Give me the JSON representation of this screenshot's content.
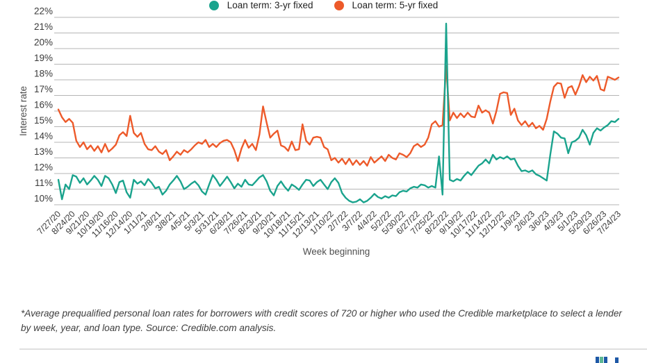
{
  "chart_data": {
    "type": "line",
    "title": "",
    "xlabel": "Week beginning",
    "ylabel": "Interest rate",
    "ylim": [
      10,
      22
    ],
    "grid": true,
    "legend_position": "bottom",
    "yticks": [
      22,
      21,
      20,
      19,
      18,
      17,
      16,
      15,
      14,
      13,
      12,
      11,
      10
    ],
    "ytick_suffix": "%",
    "x_tick_every_n_points": 4,
    "x_tick_labels": [
      "7/27/20",
      "8/24/20",
      "9/21/20",
      "10/19/20",
      "11/16/20",
      "12/14/20",
      "1/11/21",
      "2/8/21",
      "3/8/21",
      "4/5/21",
      "5/3/21",
      "5/31/21",
      "6/28/21",
      "7/26/21",
      "8/23/21",
      "9/20/21",
      "10/18/21",
      "11/15/21",
      "12/13/21",
      "1/10/22",
      "2/7/22",
      "3/7/22",
      "4/4/22",
      "5/2/22",
      "5/30/22",
      "6/27/22",
      "7/25/22",
      "8/22/22",
      "9/19/22",
      "10/17/22",
      "11/14/22",
      "12/12/22",
      "1/9/23",
      "2/6/23",
      "3/6/23",
      "4/3/23",
      "5/1/23",
      "5/29/23",
      "6/26/23",
      "7/24/23"
    ],
    "series": [
      {
        "name": "Loan term: 3-yr fixed",
        "color": "#1aa38d",
        "values": [
          11.6,
          10.35,
          11.3,
          11.0,
          11.9,
          11.8,
          11.4,
          11.7,
          11.3,
          11.55,
          11.85,
          11.6,
          11.2,
          11.85,
          11.7,
          11.3,
          10.75,
          11.45,
          11.55,
          10.8,
          10.45,
          11.6,
          11.35,
          11.5,
          11.25,
          11.65,
          11.4,
          11.05,
          11.15,
          10.65,
          10.9,
          11.3,
          11.55,
          11.85,
          11.5,
          11.0,
          11.15,
          11.35,
          11.5,
          11.25,
          10.85,
          10.65,
          11.3,
          11.9,
          11.6,
          11.2,
          11.5,
          11.8,
          11.45,
          11.05,
          11.35,
          11.15,
          11.6,
          11.3,
          11.25,
          11.5,
          11.75,
          11.9,
          11.5,
          10.9,
          10.6,
          11.2,
          11.5,
          11.15,
          10.9,
          11.3,
          11.15,
          10.95,
          11.3,
          11.6,
          11.55,
          11.2,
          11.45,
          11.6,
          11.3,
          11.0,
          11.45,
          11.7,
          11.4,
          10.75,
          10.45,
          10.25,
          10.15,
          10.2,
          10.35,
          10.15,
          10.25,
          10.45,
          10.7,
          10.5,
          10.4,
          10.55,
          10.45,
          10.6,
          10.55,
          10.8,
          10.9,
          10.85,
          11.05,
          11.15,
          11.1,
          11.3,
          11.25,
          11.1,
          11.2,
          11.1,
          13.1,
          10.65,
          21.6,
          11.6,
          11.5,
          11.65,
          11.55,
          11.85,
          12.1,
          11.9,
          12.2,
          12.5,
          12.65,
          12.9,
          12.65,
          13.2,
          12.9,
          13.05,
          12.95,
          13.1,
          12.9,
          12.95,
          12.5,
          12.15,
          12.2,
          12.1,
          12.2,
          11.95,
          11.85,
          11.7,
          11.55,
          13.2,
          14.7,
          14.55,
          14.3,
          14.25,
          13.3,
          14.0,
          14.1,
          14.3,
          14.8,
          14.45,
          13.85,
          14.6,
          14.9,
          14.75,
          14.95,
          15.1,
          15.35,
          15.3,
          15.5
        ]
      },
      {
        "name": "Loan term: 5-yr fixed",
        "color": "#ed5a2a",
        "values": [
          16.1,
          15.6,
          15.3,
          15.5,
          15.25,
          14.1,
          13.7,
          14.0,
          13.55,
          13.8,
          13.45,
          13.75,
          13.35,
          13.9,
          13.4,
          13.6,
          13.85,
          14.45,
          14.65,
          14.4,
          15.7,
          14.6,
          14.35,
          14.6,
          13.9,
          13.55,
          13.5,
          13.75,
          13.4,
          13.25,
          13.5,
          12.85,
          13.1,
          13.4,
          13.2,
          13.5,
          13.35,
          13.55,
          13.8,
          14.0,
          13.9,
          14.15,
          13.7,
          13.9,
          13.7,
          13.95,
          14.1,
          14.15,
          14.0,
          13.5,
          12.8,
          13.6,
          14.15,
          13.65,
          13.9,
          13.5,
          14.5,
          16.3,
          15.25,
          14.3,
          14.55,
          14.75,
          13.8,
          13.7,
          13.45,
          14.05,
          13.5,
          13.55,
          15.15,
          14.1,
          13.85,
          14.3,
          14.35,
          14.3,
          13.7,
          13.55,
          12.85,
          13.0,
          12.7,
          12.95,
          12.6,
          12.95,
          12.55,
          12.85,
          12.55,
          12.8,
          12.5,
          13.05,
          12.7,
          12.9,
          13.1,
          12.8,
          13.2,
          13.0,
          12.9,
          13.3,
          13.2,
          13.05,
          13.3,
          13.75,
          13.9,
          13.7,
          13.85,
          14.3,
          15.15,
          15.35,
          15.0,
          15.1,
          18.9,
          15.4,
          15.9,
          15.55,
          15.85,
          15.6,
          15.9,
          15.65,
          15.6,
          16.35,
          15.9,
          16.05,
          15.9,
          15.2,
          16.0,
          17.1,
          17.2,
          17.15,
          15.75,
          16.15,
          15.4,
          15.1,
          15.35,
          15.0,
          15.25,
          14.9,
          15.05,
          14.8,
          15.5,
          16.6,
          17.55,
          17.8,
          17.75,
          16.85,
          17.5,
          17.6,
          17.05,
          17.6,
          18.3,
          17.85,
          18.2,
          17.95,
          18.25,
          17.4,
          17.3,
          18.2,
          18.1,
          18.0,
          18.15
        ]
      }
    ]
  },
  "footnote": "*Average prequalified personal loan rates for borrowers with credit scores of 720 or higher who used the Credible marketplace to select a lender by week, year, and loan type. Source: Credible.com analysis.",
  "logo_bars": [
    "#1d58a6",
    "#5cb793",
    "#1d58a6",
    "#1d58a6"
  ]
}
